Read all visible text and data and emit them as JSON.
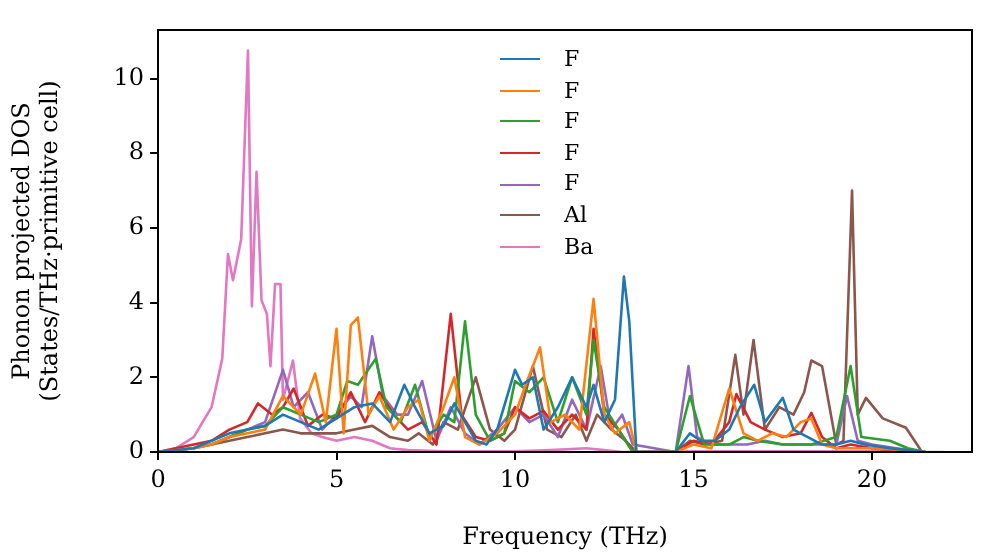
{
  "chart_data": {
    "type": "line",
    "xlabel": "Frequency (THz)",
    "ylabel": "Phonon projected DOS\n(States/THz·primitive cell)",
    "xlim": [
      0,
      22.8
    ],
    "ylim": [
      0,
      11.3
    ],
    "xticks": [
      0,
      5,
      10,
      15,
      20
    ],
    "yticks": [
      0,
      2,
      4,
      6,
      8,
      10
    ],
    "grid": false,
    "legend": "top",
    "marker": "none",
    "line_style": "solid",
    "series": [
      {
        "name": "F",
        "color": "#1f77b4",
        "x": [
          0,
          1,
          1.5,
          2,
          2.5,
          3,
          3.5,
          4,
          4.5,
          5,
          5.5,
          6,
          6.5,
          6.9,
          7.2,
          7.6,
          8,
          8.3,
          8.6,
          8.9,
          9.2,
          9.5,
          10,
          10.2,
          10.5,
          10.8,
          11.2,
          11.6,
          12,
          12.2,
          12.5,
          12.8,
          13.05,
          13.2,
          13.4,
          14.5,
          14.9,
          15.2,
          15.6,
          16,
          16.3,
          16.7,
          17,
          17.5,
          17.8,
          18.2,
          18.6,
          19,
          19.4,
          19.8,
          20.5,
          21,
          21.5
        ],
        "values": [
          0,
          0.1,
          0.3,
          0.5,
          0.6,
          0.7,
          1.0,
          0.8,
          0.6,
          0.9,
          1.2,
          1.3,
          0.8,
          1.8,
          1.2,
          0.5,
          0.7,
          1.3,
          0.8,
          0.3,
          0.2,
          0.6,
          2.2,
          1.8,
          2.0,
          0.6,
          1.2,
          2.0,
          1.2,
          1.8,
          0.8,
          1.4,
          4.7,
          3.5,
          0,
          0,
          0.5,
          0.3,
          0.3,
          0.6,
          1.2,
          1.8,
          0.8,
          1.45,
          0.6,
          0.4,
          0.2,
          0.2,
          0.3,
          0.2,
          0.1,
          0.05,
          0
        ]
      },
      {
        "name": "F",
        "color": "#ff7f0e",
        "x": [
          0,
          1,
          1.5,
          2,
          2.5,
          3,
          3.5,
          4,
          4.4,
          4.7,
          5,
          5.2,
          5.4,
          5.6,
          5.9,
          6.2,
          6.6,
          7,
          7.3,
          7.6,
          8,
          8.3,
          8.6,
          9,
          9.5,
          10,
          10.3,
          10.7,
          11,
          11.4,
          11.8,
          12.2,
          12.5,
          12.8,
          13.2,
          13.4,
          14.5,
          15,
          15.5,
          16,
          16.4,
          16.8,
          17.2,
          17.6,
          18,
          18.3,
          18.6,
          19,
          19.4,
          20,
          21,
          21.5
        ],
        "values": [
          0,
          0.1,
          0.2,
          0.4,
          0.5,
          0.6,
          1.5,
          1.0,
          2.1,
          0.8,
          3.3,
          0.5,
          3.4,
          3.6,
          1.0,
          1.5,
          0.6,
          1.2,
          1.4,
          0.3,
          1.2,
          2.0,
          0.4,
          0.2,
          0.5,
          1.0,
          1.8,
          2.8,
          0.8,
          1.0,
          0.6,
          4.1,
          1.0,
          0.5,
          0.8,
          0,
          0,
          0.2,
          0.1,
          1.7,
          0.5,
          0.3,
          0.5,
          0.4,
          0.8,
          0.9,
          0.2,
          0.1,
          0.1,
          0.1,
          0.05,
          0
        ]
      },
      {
        "name": "F",
        "color": "#2ca02c",
        "x": [
          1.5,
          2,
          2.5,
          3,
          3.5,
          4,
          4.5,
          5,
          5.3,
          5.6,
          6.1,
          6.4,
          6.8,
          7.2,
          7.6,
          8,
          8.3,
          8.6,
          8.9,
          9.3,
          9.7,
          10,
          10.4,
          10.8,
          11.2,
          11.6,
          12,
          12.2,
          12.5,
          12.9,
          13.3,
          14.5,
          14.9,
          15.3,
          16,
          16.4,
          16.8,
          17.5,
          18.3,
          19,
          19.4,
          19.7,
          20.5,
          21,
          21.5
        ],
        "values": [
          0.2,
          0.4,
          0.6,
          0.7,
          1.2,
          1.0,
          0.8,
          1.0,
          1.9,
          1.8,
          2.5,
          1.2,
          0.8,
          1.8,
          0.4,
          1.0,
          0.8,
          3.5,
          1.0,
          0.3,
          0.5,
          1.9,
          1.6,
          2.0,
          0.8,
          2.0,
          1.0,
          3.0,
          1.2,
          0.6,
          0,
          0,
          1.5,
          0.2,
          0.2,
          0.4,
          0.3,
          0.2,
          0.2,
          0.4,
          2.3,
          0.4,
          0.3,
          0.1,
          0
        ]
      },
      {
        "name": "F",
        "color": "#d62728",
        "x": [
          0,
          1,
          1.5,
          2,
          2.5,
          2.8,
          3.2,
          3.5,
          3.8,
          4.2,
          4.6,
          5,
          5.4,
          5.8,
          6.2,
          6.6,
          7,
          7.4,
          7.8,
          8.2,
          8.5,
          8.9,
          9.3,
          9.7,
          10,
          10.4,
          10.8,
          11.2,
          11.6,
          12,
          12.2,
          12.5,
          12.9,
          13.3,
          14.5,
          15,
          15.5,
          16,
          16.2,
          16.6,
          17,
          17.5,
          18,
          18.3,
          18.6,
          19,
          19.4,
          20,
          21
        ],
        "values": [
          0,
          0.2,
          0.3,
          0.6,
          0.8,
          1.3,
          1.0,
          1.2,
          1.7,
          0.7,
          1.0,
          0.9,
          1.6,
          0.8,
          1.6,
          1.0,
          0.6,
          0.8,
          0.2,
          3.7,
          1.0,
          0.4,
          0.3,
          0.5,
          1.2,
          0.9,
          1.1,
          0.6,
          1.0,
          0.6,
          3.3,
          1.0,
          0.6,
          0,
          0,
          0.3,
          0.2,
          0.8,
          1.55,
          0.8,
          0.6,
          0.4,
          0.5,
          1.05,
          0.4,
          0.1,
          0.2,
          0.1,
          0
        ]
      },
      {
        "name": "F",
        "color": "#9467bd",
        "x": [
          0,
          1,
          1.5,
          2,
          2.5,
          3,
          3.5,
          3.8,
          4.2,
          4.6,
          5,
          5.4,
          5.7,
          6.0,
          6.3,
          6.7,
          7.0,
          7.4,
          7.8,
          8.2,
          8.6,
          9,
          9.5,
          10,
          10.4,
          10.8,
          11.2,
          11.6,
          12,
          12.4,
          12.7,
          13,
          13.3,
          14.5,
          14.86,
          15.1,
          15.5,
          16,
          16.5,
          17,
          17.5,
          18,
          18.5,
          19,
          19.3,
          19.6,
          20,
          21,
          21.5
        ],
        "values": [
          0,
          0.1,
          0.2,
          0.4,
          0.6,
          0.8,
          2.2,
          1.2,
          1.6,
          0.6,
          1.0,
          1.5,
          1.2,
          3.1,
          1.5,
          1.0,
          1.0,
          1.9,
          0.3,
          1.2,
          0.5,
          0.2,
          0.6,
          1.2,
          0.8,
          1.0,
          0.4,
          1.4,
          0.6,
          2.3,
          0.6,
          1.0,
          0.2,
          0,
          2.3,
          0.4,
          0.2,
          0.2,
          0.2,
          0.3,
          0.2,
          0.2,
          0.2,
          0.2,
          1.5,
          0.3,
          0.2,
          0.05,
          0
        ]
      },
      {
        "name": "Al",
        "color": "#8c564b",
        "x": [
          0,
          1,
          1.5,
          2,
          2.5,
          3,
          3.5,
          4,
          4.5,
          5,
          5.5,
          6,
          6.5,
          7,
          7.3,
          7.7,
          8,
          8.4,
          8.9,
          9.3,
          9.7,
          10,
          10.5,
          10.9,
          11.3,
          11.7,
          12,
          12.3,
          12.7,
          13.1,
          13.4,
          14.5,
          14.9,
          15.3,
          15.8,
          16.17,
          16.4,
          16.68,
          17,
          17.4,
          17.8,
          18.1,
          18.3,
          18.6,
          19,
          19.2,
          19.44,
          19.6,
          19.83,
          20.3,
          20.95,
          21.4
        ],
        "values": [
          0,
          0.1,
          0.2,
          0.3,
          0.4,
          0.5,
          0.6,
          0.5,
          0.5,
          0.5,
          0.6,
          0.7,
          0.4,
          0.3,
          0.5,
          0.2,
          0.8,
          0.6,
          2.0,
          0.6,
          0.3,
          0.6,
          2.3,
          0.6,
          0.4,
          1.0,
          0.3,
          1.0,
          0.6,
          0.3,
          0,
          0,
          0.3,
          0.2,
          0.3,
          2.6,
          1.0,
          3.0,
          0.6,
          1.2,
          1.0,
          1.6,
          2.45,
          2.3,
          0.2,
          0.3,
          7.0,
          1.0,
          1.45,
          0.9,
          0.65,
          0
        ]
      },
      {
        "name": "Ba",
        "color": "#e377c2",
        "x": [
          0,
          0.5,
          1,
          1.5,
          1.8,
          1.96,
          2.1,
          2.33,
          2.52,
          2.63,
          2.76,
          2.9,
          3.05,
          3.15,
          3.28,
          3.43,
          3.5,
          3.78,
          3.98,
          4.3,
          4.6,
          5,
          5.5,
          6,
          6.5,
          7,
          8,
          9,
          10,
          11,
          12,
          12.5,
          13,
          14,
          15,
          16,
          17,
          18,
          19,
          20,
          21,
          22
        ],
        "values": [
          0,
          0.1,
          0.4,
          1.2,
          2.5,
          5.3,
          4.6,
          5.7,
          10.75,
          3.9,
          7.5,
          4.06,
          3.7,
          2.3,
          4.5,
          4.5,
          1.4,
          2.45,
          0.9,
          0.5,
          0.4,
          0.3,
          0.4,
          0.3,
          0.1,
          0.05,
          0.02,
          0.02,
          0.02,
          0.05,
          0.1,
          0.05,
          0,
          0,
          0.02,
          0.02,
          0.02,
          0.02,
          0.02,
          0.02,
          0,
          0
        ]
      }
    ]
  }
}
